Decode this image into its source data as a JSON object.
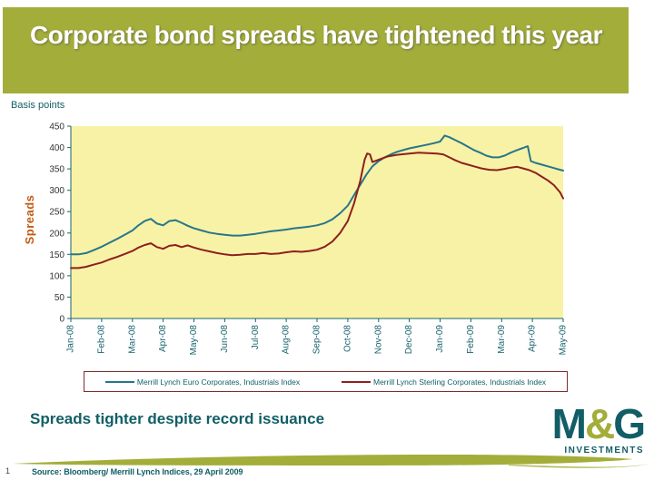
{
  "slide": {
    "title": "Corporate bond spreads have tightened this year",
    "units_label": "Basis points",
    "subtitle": "Spreads tighter despite record issuance",
    "page_number": "1",
    "source_note": "Source: Bloomberg/ Merrill Lynch Indices, 29 April 2009"
  },
  "logo": {
    "text_m": "M",
    "text_amp": "&",
    "text_g": "G",
    "subtext": "INVESTMENTS"
  },
  "colors": {
    "header_olive": "#a3ad3a",
    "title_text": "#ffffff",
    "teal_text": "#115e66",
    "axis": "#19646e",
    "ytick_text": "#333333",
    "xtick_text": "#19646e",
    "plot_bg": "#f8f2a6",
    "spreads_label": "#c55a11",
    "legend_border": "#7a2e2e",
    "euro_line": "#27768a",
    "sterling_line": "#8e1f1f"
  },
  "chart_data": {
    "type": "line",
    "title": "",
    "xlabel": "",
    "ylabel": "Spreads",
    "units": "Basis points",
    "ylim": [
      0,
      450
    ],
    "ytick_step": 50,
    "grid": false,
    "legend_position": "bottom",
    "x_categories": [
      "Jan-08",
      "Feb-08",
      "Mar-08",
      "Apr-08",
      "May-08",
      "Jun-08",
      "Jul-08",
      "Aug-08",
      "Sep-08",
      "Oct-08",
      "Nov-08",
      "Dec-08",
      "Jan-09",
      "Feb-09",
      "Mar-09",
      "Apr-09",
      "May-09"
    ],
    "series": [
      {
        "name": "Merrill Lynch Euro Corporates, Industrials Index",
        "color": "#27768a",
        "points": [
          [
            0,
            150
          ],
          [
            0.25,
            150
          ],
          [
            0.5,
            153
          ],
          [
            0.75,
            160
          ],
          [
            1,
            168
          ],
          [
            1.25,
            177
          ],
          [
            1.5,
            186
          ],
          [
            1.75,
            196
          ],
          [
            2,
            206
          ],
          [
            2.2,
            218
          ],
          [
            2.4,
            228
          ],
          [
            2.6,
            233
          ],
          [
            2.8,
            222
          ],
          [
            3,
            218
          ],
          [
            3.2,
            228
          ],
          [
            3.4,
            230
          ],
          [
            3.6,
            224
          ],
          [
            3.8,
            217
          ],
          [
            4,
            211
          ],
          [
            4.25,
            206
          ],
          [
            4.5,
            201
          ],
          [
            4.75,
            198
          ],
          [
            5,
            196
          ],
          [
            5.25,
            194
          ],
          [
            5.5,
            194
          ],
          [
            5.75,
            196
          ],
          [
            6,
            198
          ],
          [
            6.25,
            201
          ],
          [
            6.5,
            204
          ],
          [
            6.75,
            206
          ],
          [
            7,
            208
          ],
          [
            7.25,
            211
          ],
          [
            7.5,
            213
          ],
          [
            7.75,
            215
          ],
          [
            8,
            218
          ],
          [
            8.25,
            223
          ],
          [
            8.5,
            232
          ],
          [
            8.75,
            246
          ],
          [
            9,
            264
          ],
          [
            9.2,
            288
          ],
          [
            9.4,
            312
          ],
          [
            9.6,
            336
          ],
          [
            9.8,
            356
          ],
          [
            10,
            368
          ],
          [
            10.2,
            377
          ],
          [
            10.4,
            384
          ],
          [
            10.6,
            390
          ],
          [
            10.8,
            394
          ],
          [
            11,
            398
          ],
          [
            11.2,
            401
          ],
          [
            11.4,
            404
          ],
          [
            11.6,
            407
          ],
          [
            11.8,
            410
          ],
          [
            12,
            414
          ],
          [
            12.15,
            428
          ],
          [
            12.3,
            424
          ],
          [
            12.5,
            417
          ],
          [
            12.7,
            410
          ],
          [
            12.9,
            402
          ],
          [
            13.1,
            394
          ],
          [
            13.3,
            388
          ],
          [
            13.5,
            381
          ],
          [
            13.7,
            377
          ],
          [
            13.9,
            377
          ],
          [
            14.1,
            381
          ],
          [
            14.3,
            388
          ],
          [
            14.5,
            394
          ],
          [
            14.7,
            399
          ],
          [
            14.85,
            403
          ],
          [
            14.95,
            368
          ],
          [
            15.1,
            364
          ],
          [
            15.3,
            360
          ],
          [
            15.5,
            356
          ],
          [
            15.7,
            352
          ],
          [
            15.9,
            348
          ],
          [
            16,
            346
          ]
        ]
      },
      {
        "name": "Merrill Lynch Sterling Corporates, Industrials Index",
        "color": "#8e1f1f",
        "points": [
          [
            0,
            118
          ],
          [
            0.25,
            118
          ],
          [
            0.5,
            121
          ],
          [
            0.75,
            126
          ],
          [
            1,
            131
          ],
          [
            1.25,
            138
          ],
          [
            1.5,
            144
          ],
          [
            1.75,
            151
          ],
          [
            2,
            158
          ],
          [
            2.2,
            166
          ],
          [
            2.4,
            172
          ],
          [
            2.6,
            176
          ],
          [
            2.8,
            167
          ],
          [
            3,
            163
          ],
          [
            3.2,
            170
          ],
          [
            3.4,
            172
          ],
          [
            3.6,
            167
          ],
          [
            3.8,
            171
          ],
          [
            4,
            166
          ],
          [
            4.25,
            161
          ],
          [
            4.5,
            157
          ],
          [
            4.75,
            153
          ],
          [
            5,
            150
          ],
          [
            5.25,
            148
          ],
          [
            5.5,
            149
          ],
          [
            5.75,
            151
          ],
          [
            6,
            151
          ],
          [
            6.25,
            153
          ],
          [
            6.5,
            151
          ],
          [
            6.75,
            152
          ],
          [
            7,
            155
          ],
          [
            7.25,
            157
          ],
          [
            7.5,
            156
          ],
          [
            7.75,
            158
          ],
          [
            8,
            161
          ],
          [
            8.25,
            168
          ],
          [
            8.5,
            180
          ],
          [
            8.75,
            200
          ],
          [
            9,
            228
          ],
          [
            9.2,
            268
          ],
          [
            9.4,
            320
          ],
          [
            9.55,
            372
          ],
          [
            9.63,
            386
          ],
          [
            9.72,
            384
          ],
          [
            9.8,
            366
          ],
          [
            9.95,
            370
          ],
          [
            10.1,
            374
          ],
          [
            10.3,
            379
          ],
          [
            10.6,
            383
          ],
          [
            11,
            386
          ],
          [
            11.3,
            388
          ],
          [
            11.6,
            387
          ],
          [
            11.9,
            386
          ],
          [
            12.1,
            384
          ],
          [
            12.3,
            377
          ],
          [
            12.5,
            370
          ],
          [
            12.7,
            364
          ],
          [
            12.9,
            360
          ],
          [
            13.1,
            356
          ],
          [
            13.35,
            351
          ],
          [
            13.6,
            348
          ],
          [
            13.85,
            347
          ],
          [
            14.1,
            350
          ],
          [
            14.3,
            353
          ],
          [
            14.5,
            355
          ],
          [
            14.7,
            351
          ],
          [
            14.9,
            347
          ],
          [
            15.1,
            341
          ],
          [
            15.3,
            332
          ],
          [
            15.5,
            323
          ],
          [
            15.7,
            312
          ],
          [
            15.9,
            295
          ],
          [
            16,
            281
          ]
        ]
      }
    ]
  }
}
